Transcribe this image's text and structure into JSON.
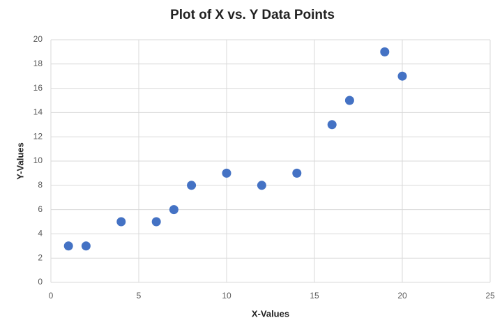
{
  "chart_data": {
    "type": "scatter",
    "title": "Plot of X vs. Y Data Points",
    "x_label": "X-Values",
    "y_label": "Y-Values",
    "series": [
      {
        "name": "Y-Values",
        "color": "#4472c4",
        "x": [
          1,
          2,
          4,
          6,
          7,
          8,
          10,
          12,
          14,
          16,
          17,
          19,
          20
        ],
        "values": [
          3,
          3,
          5,
          5,
          6,
          8,
          9,
          8,
          9,
          13,
          15,
          19,
          17
        ]
      }
    ],
    "xlim": [
      0,
      25
    ],
    "xticks": [
      0,
      5,
      10,
      15,
      20,
      25
    ],
    "ylim": [
      0,
      20
    ],
    "yticks": [
      0,
      2,
      4,
      6,
      8,
      10,
      12,
      14,
      16,
      18,
      20
    ],
    "grid": true
  }
}
